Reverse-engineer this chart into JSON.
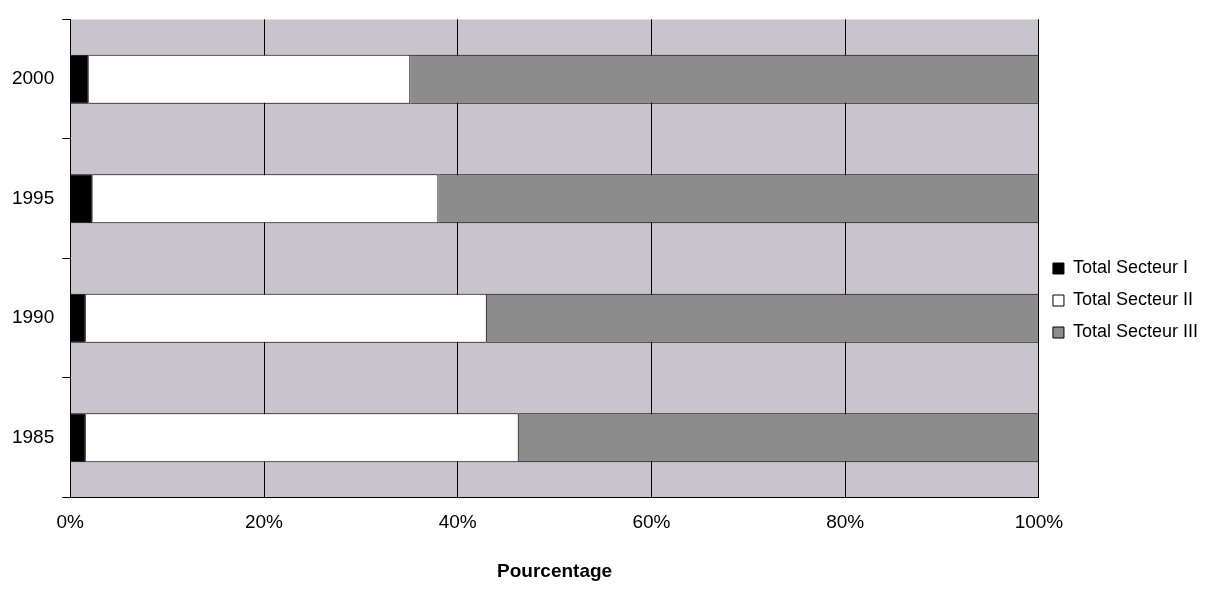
{
  "chart_data": {
    "type": "bar",
    "orientation": "horizontal",
    "stacked": true,
    "categories": [
      "2000",
      "1995",
      "1990",
      "1985"
    ],
    "series": [
      {
        "name": "Total Secteur I",
        "color": "#000000",
        "values": [
          1.9,
          2.3,
          1.6,
          1.6
        ]
      },
      {
        "name": "Total Secteur II",
        "color": "#ffffff",
        "values": [
          33.2,
          35.7,
          41.4,
          44.7
        ]
      },
      {
        "name": "Total Secteur III",
        "color": "#8c8c8c",
        "values": [
          64.9,
          62.0,
          57.0,
          53.7
        ]
      }
    ],
    "xlabel": "Pourcentage",
    "xlim": [
      0,
      100
    ],
    "xticks": [
      {
        "value": 0,
        "label": "0%"
      },
      {
        "value": 20,
        "label": "20%"
      },
      {
        "value": 40,
        "label": "40%"
      },
      {
        "value": 60,
        "label": "60%"
      },
      {
        "value": 80,
        "label": "80%"
      },
      {
        "value": 100,
        "label": "100%"
      }
    ],
    "grid": "x",
    "legend": "right"
  }
}
